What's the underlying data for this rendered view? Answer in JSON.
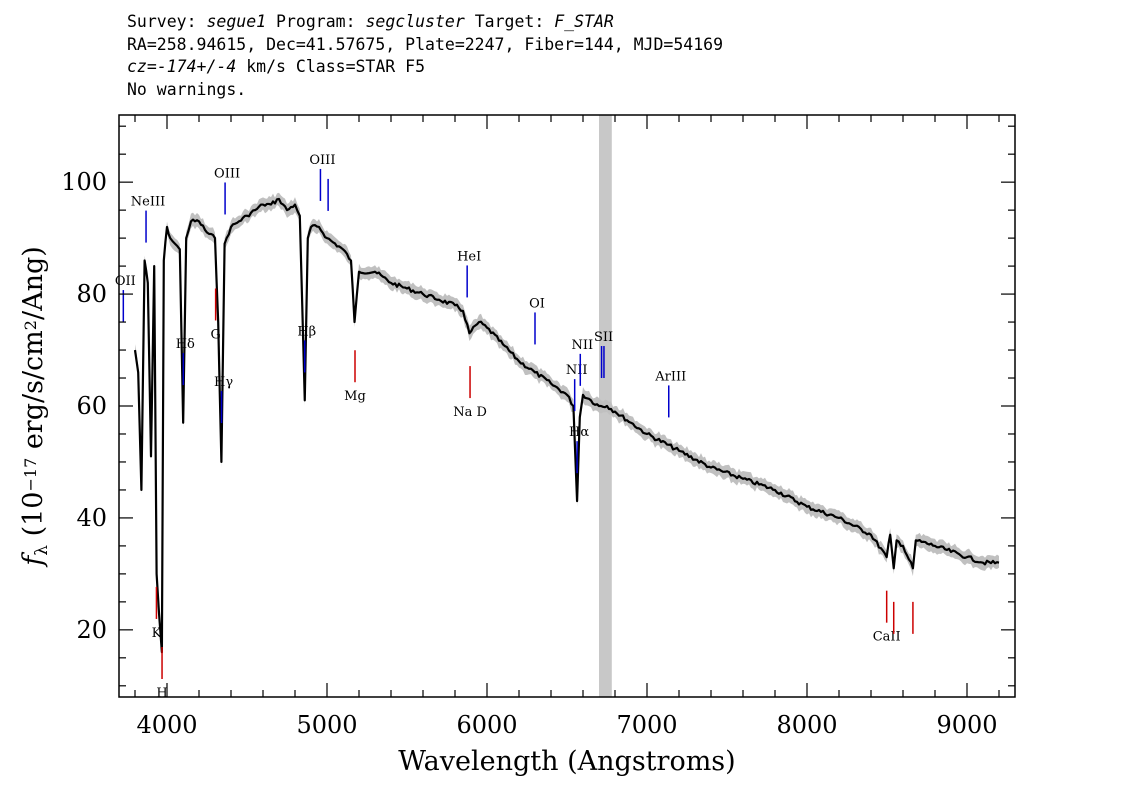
{
  "header": {
    "survey_label": "Survey:",
    "survey": "segue1",
    "program_label": "Program:",
    "program": "segcluster",
    "target_label": "Target:",
    "target": "F_STAR",
    "line2": "RA=258.94615, Dec=41.57675, Plate=2247, Fiber=144, MJD=54169",
    "cz_label": "cz=",
    "cz_value": "-174+/-4",
    "cz_units": " km/s Class=STAR F5",
    "line4": "No warnings."
  },
  "chart_data": {
    "type": "line",
    "xlabel": "Wavelength (Angstroms)",
    "ylabel": "f_λ (10^-17 erg/s/cm^2/Ang)",
    "xlim": [
      3700,
      9300
    ],
    "ylim": [
      8,
      112
    ],
    "x_ticks": [
      4000,
      5000,
      6000,
      7000,
      8000,
      9000
    ],
    "y_ticks": [
      20,
      40,
      60,
      80,
      100
    ],
    "masked_region": [
      6700,
      6780
    ],
    "colors": {
      "flux": "#000000",
      "error_band": "#c0c0c0",
      "mask": "#c8c8c8",
      "emission": "#0000cc",
      "absorption": "#cc0000"
    },
    "series": [
      {
        "x": [
          3800,
          3820,
          3840,
          3860,
          3880,
          3900,
          3920,
          3935,
          3950,
          3968,
          3980,
          4000,
          4020,
          4050,
          4080,
          4101,
          4120,
          4150,
          4200,
          4250,
          4300,
          4320,
          4340,
          4360,
          4400,
          4450,
          4500,
          4550,
          4600,
          4650,
          4700,
          4750,
          4800,
          4830,
          4861,
          4880,
          4900,
          4950,
          5000,
          5100,
          5150,
          5172,
          5200,
          5300,
          5400,
          5500,
          5600,
          5700,
          5800,
          5850,
          5890,
          5950,
          6000,
          6100,
          6200,
          6300,
          6400,
          6500,
          6540,
          6563,
          6580,
          6600,
          6650,
          6700,
          6750,
          6800,
          6900,
          7000,
          7200,
          7400,
          7600,
          7800,
          8000,
          8200,
          8400,
          8498,
          8520,
          8542,
          8560,
          8600,
          8662,
          8680,
          8800,
          9000,
          9100,
          9200
        ],
        "y": [
          70,
          66,
          45,
          86,
          82,
          51,
          85,
          30,
          23,
          16,
          86,
          92,
          90,
          89,
          88,
          57,
          90,
          93,
          93,
          91,
          90,
          75,
          50,
          89,
          92,
          93,
          94,
          95,
          96,
          96,
          97,
          95,
          96,
          94,
          61,
          90,
          92,
          92,
          90,
          88,
          86,
          75,
          84,
          84,
          82,
          81,
          80,
          79,
          78,
          77,
          73,
          75,
          74,
          71,
          68,
          66,
          64,
          62,
          60,
          43,
          58,
          62,
          61,
          60,
          60,
          59,
          57,
          55,
          52,
          49,
          47,
          45,
          42,
          40,
          37,
          33,
          37,
          31,
          36,
          35,
          31,
          36,
          35,
          33,
          32,
          32
        ]
      }
    ],
    "emission_lines": [
      {
        "label": "OII",
        "wavelength": 3727
      },
      {
        "label": "NeIII",
        "wavelength": 3869
      },
      {
        "label": "Hδ",
        "wavelength": 4102
      },
      {
        "label": "Hγ",
        "wavelength": 4341
      },
      {
        "label": "OIII",
        "wavelength": 4363
      },
      {
        "label": "Hβ",
        "wavelength": 4861
      },
      {
        "label": "OIII",
        "wavelength": 4959
      },
      {
        "label": "",
        "wavelength": 5007
      },
      {
        "label": "HeI",
        "wavelength": 5876
      },
      {
        "label": "OI",
        "wavelength": 6300
      },
      {
        "label": "NII",
        "wavelength": 6548
      },
      {
        "label": "Hα",
        "wavelength": 6563
      },
      {
        "label": "NII",
        "wavelength": 6583
      },
      {
        "label": "SII",
        "wavelength": 6716
      },
      {
        "label": "",
        "wavelength": 6731
      },
      {
        "label": "ArIII",
        "wavelength": 7136
      }
    ],
    "absorption_lines": [
      {
        "label": "K",
        "wavelength": 3934
      },
      {
        "label": "H",
        "wavelength": 3969
      },
      {
        "label": "G",
        "wavelength": 4304
      },
      {
        "label": "Mg",
        "wavelength": 5175
      },
      {
        "label": "Na D",
        "wavelength": 5894
      },
      {
        "label": "CaII",
        "wavelength": 8498
      },
      {
        "label": "",
        "wavelength": 8542
      },
      {
        "label": "",
        "wavelength": 8662
      }
    ]
  }
}
